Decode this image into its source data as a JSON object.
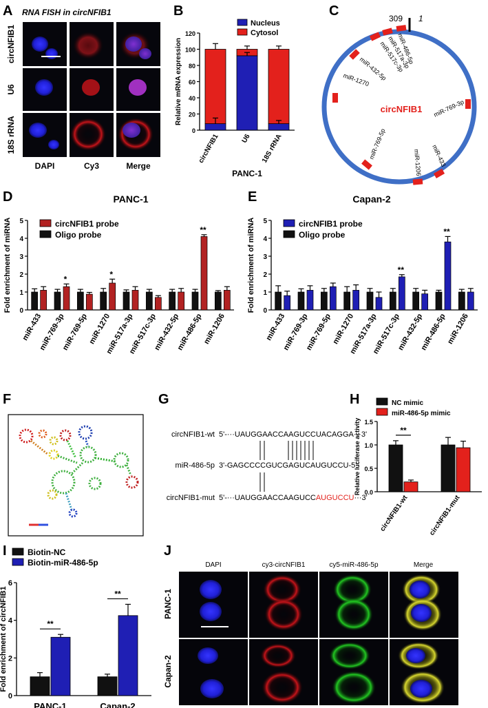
{
  "colors": {
    "red": "#e3211c",
    "blue": "#1f1fb4",
    "black": "#111111",
    "nucleus_blue": "#2020d0",
    "cell_bg": "#05050a",
    "ring_blue": "#3f6fc6",
    "mut_red": "#e3211c"
  },
  "panels": {
    "A": {
      "letter": "A",
      "title": "RNA FISH in circNFIB1",
      "row_labels": [
        "circNFIB1",
        "U6",
        "18S rRNA"
      ],
      "col_labels": [
        "DAPI",
        "Cy3",
        "Merge"
      ]
    },
    "B": {
      "letter": "B",
      "xlabel": "PANC-1"
    },
    "C": {
      "letter": "C",
      "center_label": "circNFIB1",
      "pos_start": "309",
      "pos_one": "1",
      "sites": [
        "miR-486-5p",
        "miR-517a-3p",
        "miR-517c-3p",
        "miR-432-5p",
        "miR-1270",
        "miR-769-3p",
        "miR-769-5p",
        "miR-1206",
        "miR-433"
      ]
    },
    "D": {
      "letter": "D",
      "title": "PANC-1"
    },
    "E": {
      "letter": "E",
      "title": "Capan-2"
    },
    "F": {
      "letter": "F"
    },
    "G": {
      "letter": "G",
      "row1_label": "circNFIB1-wt",
      "row1_seq": "5'-···UAUGGAACCAAGUCCUACAGGA···3'",
      "row2_label": "miR-486-5p",
      "row2_seq": "3'-GAGCCCCGUCGAGUCAUGUCCU-5'",
      "row3_label": "circNFIB1-mut",
      "row3_seq_a": "5'-···UAUGGAACCAAGUCC",
      "row3_seq_b": "AUGUCCU",
      "row3_seq_c": "···3'"
    },
    "H": {
      "letter": "H"
    },
    "I": {
      "letter": "I"
    },
    "J": {
      "letter": "J",
      "col_labels": [
        "DAPI",
        "cy3-circNFIB1",
        "cy5-miR-486-5p",
        "Merge"
      ],
      "row_labels": [
        "PANC-1",
        "Capan-2"
      ]
    }
  },
  "chart_data": [
    {
      "panel": "B",
      "type": "bar",
      "stacked": true,
      "categories": [
        "circNFIB1",
        "U6",
        "18S rRNA"
      ],
      "series": [
        {
          "name": "Nucleus",
          "color": "#1f1fb4",
          "values": [
            8,
            92,
            8
          ],
          "errors": [
            7,
            4,
            4
          ]
        },
        {
          "name": "Cytosol",
          "color": "#e3211c",
          "values": [
            92,
            8,
            92
          ],
          "errors": [
            7,
            4,
            4
          ]
        }
      ],
      "ylabel": "Relative mRNA expression",
      "xlabel": "PANC-1",
      "ylim": [
        0,
        120
      ],
      "yticks": [
        0,
        20,
        40,
        60,
        80,
        100,
        120
      ],
      "legend": "top-right"
    },
    {
      "panel": "D",
      "type": "bar",
      "title": "PANC-1",
      "categories": [
        "miR-433",
        "miR-769-3p",
        "miR-769-5p",
        "miR-1270",
        "miR-517a-3p",
        "miR-517c-3p",
        "miR-432-5p",
        "miR-486-5p",
        "miR-1206"
      ],
      "series": [
        {
          "name": "Oligo probe",
          "color": "#111111",
          "values": [
            1.0,
            1.0,
            1.0,
            1.0,
            1.0,
            1.0,
            1.0,
            1.0,
            1.0
          ],
          "errors": [
            0.18,
            0.15,
            0.15,
            0.2,
            0.12,
            0.15,
            0.15,
            0.15,
            0.08
          ]
        },
        {
          "name": "circNFIB1 probe",
          "color": "#b22222",
          "values": [
            1.1,
            1.3,
            0.88,
            1.5,
            1.1,
            0.7,
            1.0,
            4.1,
            1.1
          ],
          "errors": [
            0.2,
            0.15,
            0.1,
            0.22,
            0.2,
            0.1,
            0.2,
            0.1,
            0.2
          ]
        }
      ],
      "annotations": [
        "",
        "*",
        "",
        "*",
        "",
        "",
        "",
        "**",
        ""
      ],
      "ylabel": "Fold enrichment of miRNA",
      "ylim": [
        0,
        5
      ],
      "yticks": [
        0,
        1,
        2,
        3,
        4,
        5
      ],
      "legend": "top-left"
    },
    {
      "panel": "E",
      "type": "bar",
      "title": "Capan-2",
      "categories": [
        "miR-433",
        "miR-769-3p",
        "miR-769-5p",
        "miR-1270",
        "miR-517a-3p",
        "miR-517c-3p",
        "miR-432-5p",
        "miR-486-5p",
        "miR-1206"
      ],
      "series": [
        {
          "name": "Oligo probe",
          "color": "#111111",
          "values": [
            1.0,
            1.0,
            1.0,
            1.0,
            1.0,
            1.0,
            1.0,
            1.0,
            1.0
          ],
          "errors": [
            0.35,
            0.18,
            0.2,
            0.3,
            0.2,
            0.2,
            0.2,
            0.1,
            0.15
          ]
        },
        {
          "name": "circNFIB1 probe",
          "color": "#1f1fb4",
          "values": [
            0.8,
            1.1,
            1.3,
            1.1,
            0.7,
            1.85,
            0.9,
            3.8,
            1.0
          ],
          "errors": [
            0.25,
            0.25,
            0.2,
            0.3,
            0.3,
            0.12,
            0.2,
            0.3,
            0.2
          ]
        }
      ],
      "annotations": [
        "",
        "",
        "",
        "",
        "",
        "**",
        "",
        "**",
        ""
      ],
      "ylabel": "Fold enrichment of miRNA",
      "ylim": [
        0,
        5
      ],
      "yticks": [
        0,
        1,
        2,
        3,
        4,
        5
      ],
      "legend": "top-left"
    },
    {
      "panel": "H",
      "type": "bar",
      "categories": [
        "circNFIB1-wt",
        "circNFIB1-mut"
      ],
      "series": [
        {
          "name": "NC mimic",
          "color": "#111111",
          "values": [
            1.0,
            1.0
          ],
          "errors": [
            0.09,
            0.16
          ]
        },
        {
          "name": "miR-486-5p mimic",
          "color": "#e3211c",
          "values": [
            0.21,
            0.94
          ],
          "errors": [
            0.04,
            0.14
          ]
        }
      ],
      "significance": [
        {
          "category": "circNFIB1-wt",
          "label": "**"
        }
      ],
      "ylabel": "Relative luciferase activity",
      "ylim": [
        0,
        1.5
      ],
      "yticks": [
        0.0,
        0.5,
        1.0,
        1.5
      ],
      "legend": "top"
    },
    {
      "panel": "I",
      "type": "bar",
      "categories": [
        "PANC-1",
        "Capan-2"
      ],
      "series": [
        {
          "name": "Biotin-NC",
          "color": "#111111",
          "values": [
            1.0,
            1.0
          ],
          "errors": [
            0.22,
            0.14
          ]
        },
        {
          "name": "Biotin-miR-486-5p",
          "color": "#1f1fb4",
          "values": [
            3.1,
            4.25
          ],
          "errors": [
            0.15,
            0.6
          ]
        }
      ],
      "significance": [
        {
          "category": "PANC-1",
          "label": "**"
        },
        {
          "category": "Capan-2",
          "label": "**"
        }
      ],
      "ylabel": "Fold enrichment of circNFIB1",
      "ylim": [
        0,
        6
      ],
      "yticks": [
        0,
        2,
        4,
        6
      ],
      "legend": "top"
    }
  ]
}
